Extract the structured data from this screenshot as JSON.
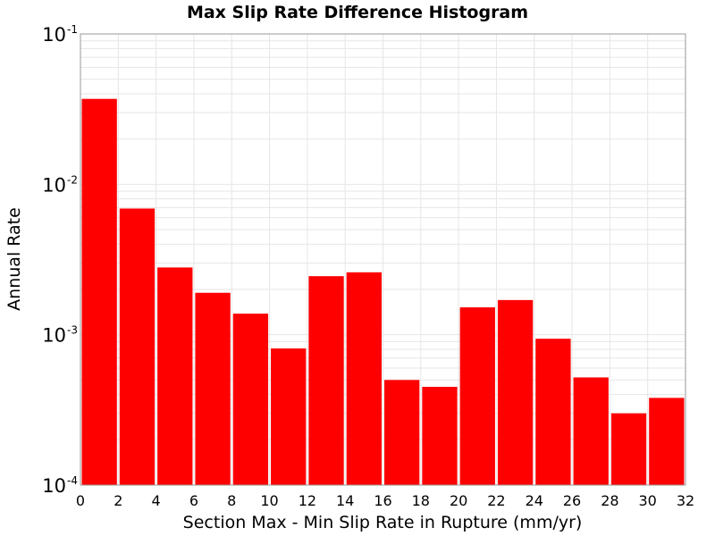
{
  "chart_data": {
    "type": "bar",
    "title": "Max Slip Rate Difference Histogram",
    "xlabel": "Section Max - Min Slip Rate in Rupture (mm/yr)",
    "ylabel": "Annual Rate",
    "xlim": [
      0,
      32
    ],
    "ylim": [
      0.0001,
      0.1
    ],
    "yscale": "log",
    "grid": true,
    "bar_color": "#ff0000",
    "bin_width": 2,
    "bins": [
      {
        "x0": 0,
        "x1": 2,
        "value": 0.037
      },
      {
        "x0": 2,
        "x1": 4,
        "value": 0.0069
      },
      {
        "x0": 4,
        "x1": 6,
        "value": 0.0028
      },
      {
        "x0": 6,
        "x1": 8,
        "value": 0.0019
      },
      {
        "x0": 8,
        "x1": 10,
        "value": 0.00138
      },
      {
        "x0": 10,
        "x1": 12,
        "value": 0.00081
      },
      {
        "x0": 12,
        "x1": 14,
        "value": 0.00245
      },
      {
        "x0": 14,
        "x1": 16,
        "value": 0.0026
      },
      {
        "x0": 16,
        "x1": 18,
        "value": 0.0005
      },
      {
        "x0": 18,
        "x1": 20,
        "value": 0.00045
      },
      {
        "x0": 20,
        "x1": 22,
        "value": 0.00152
      },
      {
        "x0": 22,
        "x1": 24,
        "value": 0.0017
      },
      {
        "x0": 24,
        "x1": 26,
        "value": 0.00094
      },
      {
        "x0": 26,
        "x1": 28,
        "value": 0.00052
      },
      {
        "x0": 28,
        "x1": 30,
        "value": 0.0003
      },
      {
        "x0": 30,
        "x1": 32,
        "value": 0.00038
      }
    ],
    "x_ticks": [
      "0",
      "2",
      "4",
      "6",
      "8",
      "10",
      "12",
      "14",
      "16",
      "18",
      "20",
      "22",
      "24",
      "26",
      "28",
      "30",
      "32"
    ],
    "y_ticks": [
      {
        "value": 0.1,
        "base": "10",
        "exp": "-1"
      },
      {
        "value": 0.01,
        "base": "10",
        "exp": "-2"
      },
      {
        "value": 0.001,
        "base": "10",
        "exp": "-3"
      },
      {
        "value": 0.0001,
        "base": "10",
        "exp": "-4"
      }
    ]
  }
}
